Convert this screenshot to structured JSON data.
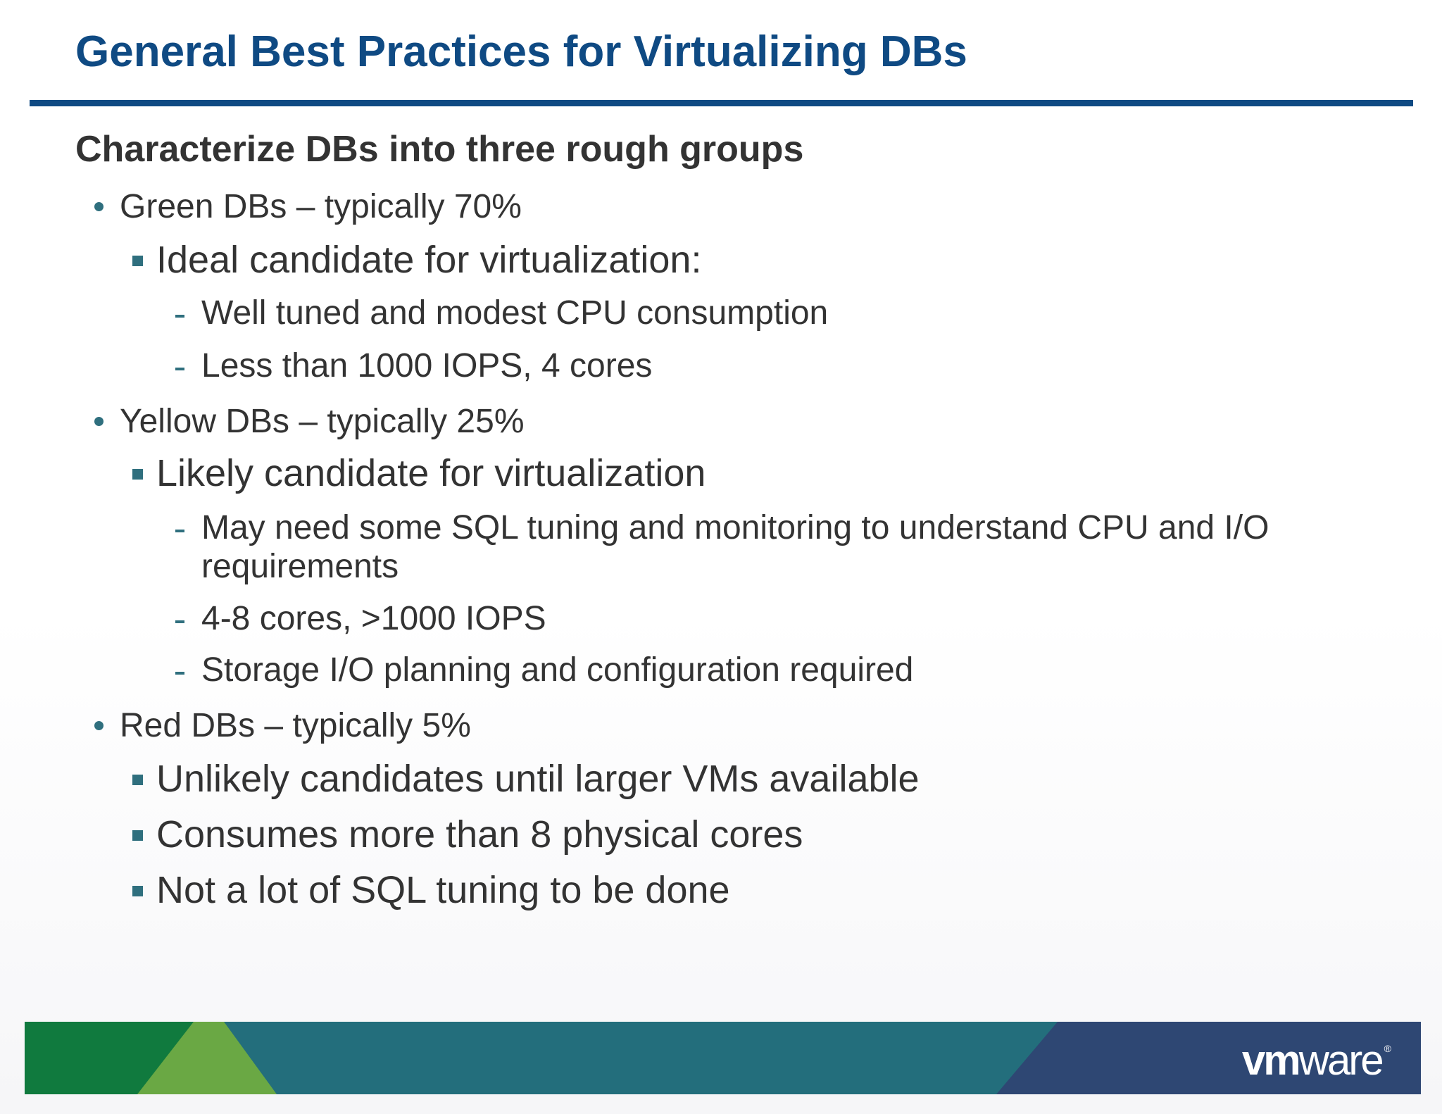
{
  "slide": {
    "title": "General Best Practices for Virtualizing DBs",
    "heading": "Characterize DBs into three rough groups",
    "groups": [
      {
        "label": "Green DBs – typically 70%",
        "sub": "Ideal candidate for virtualization:",
        "details": [
          "Well tuned and modest CPU consumption",
          "Less than 1000 IOPS, 4 cores"
        ]
      },
      {
        "label": "Yellow DBs – typically 25%",
        "sub": "Likely candidate for virtualization",
        "details": [
          "May need some SQL tuning and monitoring to understand CPU and I/O",
          "requirements",
          "4-8 cores, >1000 IOPS",
          "Storage I/O planning and configuration required"
        ]
      },
      {
        "label": "Red DBs – typically 5%",
        "subs": [
          "Unlikely candidates until larger VMs available",
          "Consumes more than 8 physical cores",
          "Not a lot of SQL tuning to be done"
        ]
      }
    ]
  },
  "footer": {
    "logo_vm": "vm",
    "logo_ware": "ware",
    "logo_reg": "®",
    "colors": {
      "title": "#0f4a83",
      "band_green": "#107a3e",
      "band_light_green": "#6aa844",
      "band_teal": "#236e7c",
      "band_navy": "#2e4773",
      "bullet": "#2f6f7e"
    }
  }
}
